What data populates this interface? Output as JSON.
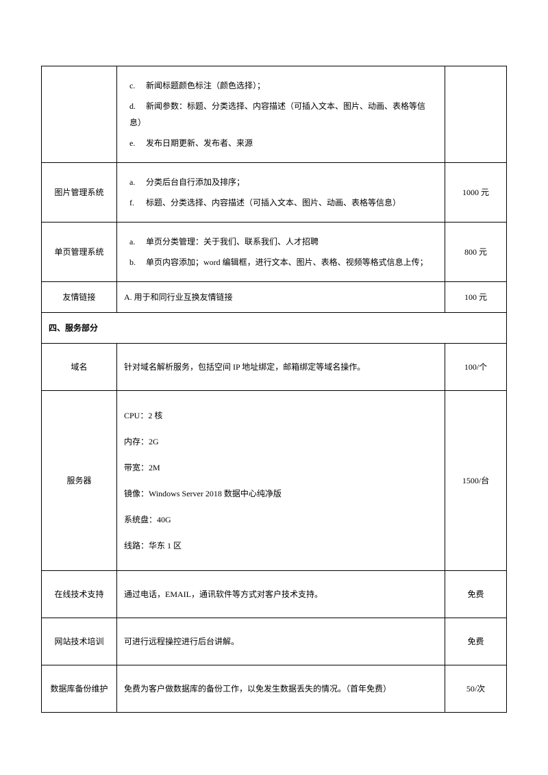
{
  "rows": [
    {
      "name": "",
      "price": "",
      "showName": false,
      "showPrice": false,
      "type": "letters",
      "items": [
        {
          "letter": "c.",
          "text": "新闻标题颜色标注（颜色选择）；"
        },
        {
          "letter": "d.",
          "text": "新闻参数：标题、分类选择、内容描述（可插入文本、图片、动画、表格等信息）"
        },
        {
          "letter": "e.",
          "text": "发布日期更新、发布者、来源"
        }
      ]
    },
    {
      "name": "图片管理系统",
      "price": "1000 元",
      "showName": true,
      "showPrice": true,
      "type": "letters",
      "items": [
        {
          "letter": "a.",
          "text": "分类后台自行添加及排序；"
        },
        {
          "letter": "f.",
          "text": "标题、分类选择、内容描述（可插入文本、图片、动画、表格等信息）"
        }
      ]
    },
    {
      "name": "单页管理系统",
      "price": "800 元",
      "showName": true,
      "showPrice": true,
      "type": "letters",
      "items": [
        {
          "letter": "a.",
          "text": "单页分类管理：关于我们、联系我们、人才招聘"
        },
        {
          "letter": "b.",
          "text": "单页内容添加；word 编辑框，进行文本、图片、表格、视频等格式信息上传；"
        }
      ]
    },
    {
      "name": "友情链接",
      "price": "100 元",
      "showName": true,
      "showPrice": true,
      "type": "plain",
      "text": "A. 用于和同行业互换友情链接"
    }
  ],
  "sectionHeader": "四、服务部分",
  "serviceRows": [
    {
      "name": "域名",
      "price": "100/个",
      "type": "plain",
      "text": "针对域名解析服务，包括空间 IP 地址绑定，邮箱绑定等域名操作。"
    },
    {
      "name": "服务器",
      "price": "1500/台",
      "type": "specs",
      "lines": [
        "CPU：2 核",
        "内存：2G",
        "带宽：2M",
        "镜像：Windows Server 2018 数据中心纯净版",
        "系统盘：40G",
        "线路：华东 1 区"
      ]
    },
    {
      "name": "在线技术支持",
      "price": "免费",
      "type": "plain",
      "text": "通过电话，EMAIL，通讯软件等方式对客户技术支持。"
    },
    {
      "name": "网站技术培训",
      "price": "免费",
      "type": "plain",
      "text": "可进行远程操控进行后台讲解。"
    },
    {
      "name": "数据库备份维护",
      "price": "50/次",
      "type": "plain",
      "text": "免费为客户做数据库的备份工作，以免发生数据丢失的情况。（首年免费）"
    }
  ]
}
